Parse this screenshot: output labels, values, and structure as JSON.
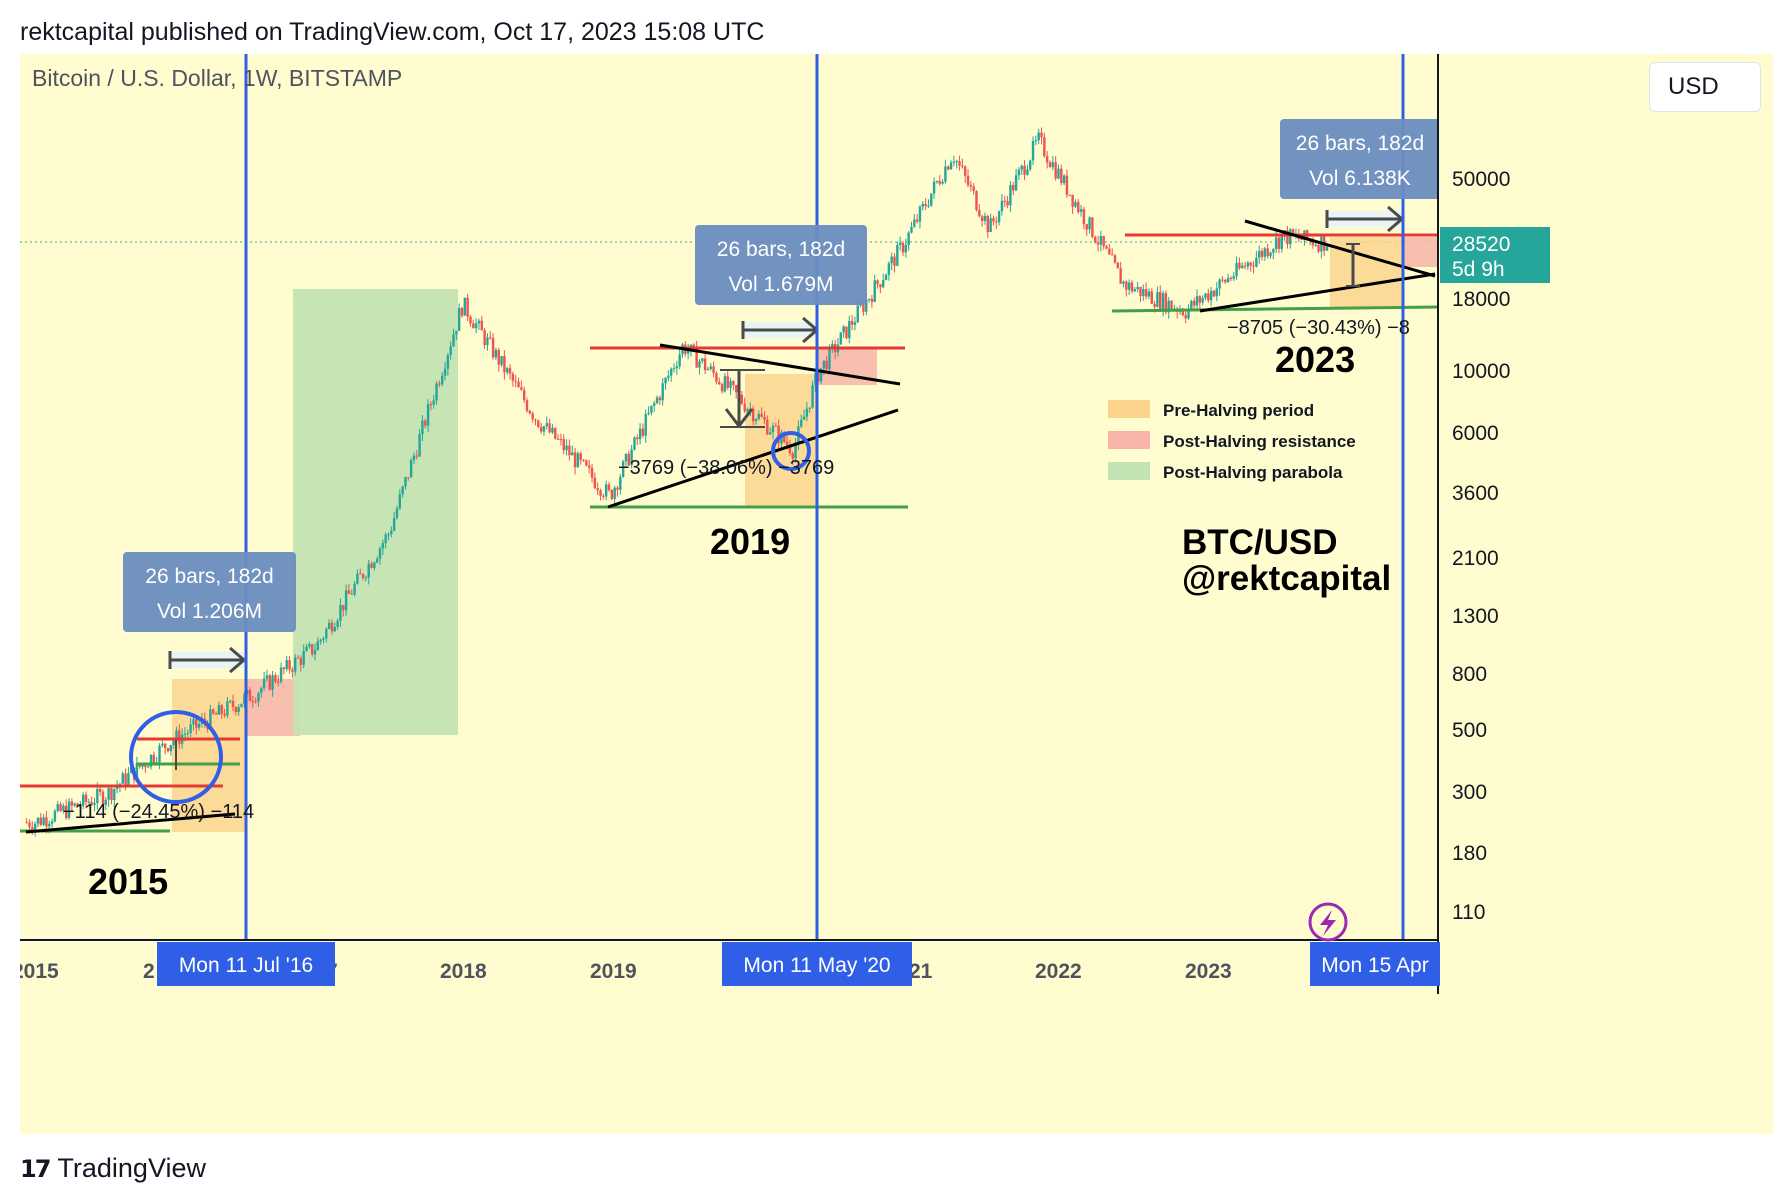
{
  "header": {
    "published_line": "rektcapital published on TradingView.com, Oct 17, 2023 15:08 UTC"
  },
  "chart_header": {
    "symbol_line": "Bitcoin / U.S. Dollar, 1W, BITSTAMP",
    "currency_button": "USD"
  },
  "footer": {
    "brand": "TradingView"
  },
  "colors": {
    "background": "#fffccf",
    "pre_halving": "#fbd38d",
    "post_halving_resistance": "#f8b4a8",
    "post_halving_parabola": "#c4e3b2",
    "resistance_line": "#e53935",
    "support_line": "#43a047",
    "halving_line": "#2f5fe6",
    "measure_box": "#6a8cbf",
    "price_tag": "#26a69a",
    "up_candle": "#26a69a",
    "down_candle": "#ef5350"
  },
  "chart_data": {
    "type": "candlestick",
    "title": "Bitcoin / U.S. Dollar, 1W, BITSTAMP",
    "scale": "log",
    "y_ticks": [
      "50000",
      "18000",
      "10000",
      "6000",
      "3600",
      "2100",
      "1300",
      "800",
      "500",
      "300",
      "180",
      "110"
    ],
    "x_ticks": [
      "2015",
      "2018",
      "2019",
      "2022",
      "2023"
    ],
    "x_tick_fragments": [
      "2",
      "7",
      "21"
    ],
    "last_price": "28520",
    "last_price_countdown": "5d 9h",
    "halving_markers": [
      "Mon 11 Jul '16",
      "Mon 11 May '20",
      "Mon 15 Apr"
    ],
    "series": [
      {
        "name": "BTC/USD",
        "approx_close": [
          {
            "t": "2015-01",
            "p": 220
          },
          {
            "t": "2015-07",
            "p": 280
          },
          {
            "t": "2015-12",
            "p": 430
          },
          {
            "t": "2016-07",
            "p": 650
          },
          {
            "t": "2016-12",
            "p": 960
          },
          {
            "t": "2017-06",
            "p": 2500
          },
          {
            "t": "2017-12",
            "p": 17000
          },
          {
            "t": "2018-06",
            "p": 6500
          },
          {
            "t": "2018-12",
            "p": 3400
          },
          {
            "t": "2019-06",
            "p": 12000
          },
          {
            "t": "2020-03",
            "p": 5000
          },
          {
            "t": "2020-05",
            "p": 9500
          },
          {
            "t": "2020-12",
            "p": 28000
          },
          {
            "t": "2021-04",
            "p": 60000
          },
          {
            "t": "2021-07",
            "p": 32000
          },
          {
            "t": "2021-11",
            "p": 67000
          },
          {
            "t": "2022-06",
            "p": 20000
          },
          {
            "t": "2022-11",
            "p": 16000
          },
          {
            "t": "2023-07",
            "p": 30000
          },
          {
            "t": "2023-10",
            "p": 28520
          }
        ]
      }
    ],
    "annotations": {
      "cycle_labels": [
        "2015",
        "2019",
        "2023"
      ],
      "measures": [
        {
          "text": "26 bars, 182d",
          "vol": "Vol 1.206M"
        },
        {
          "text": "26 bars, 182d",
          "vol": "Vol 1.679M"
        },
        {
          "text": "26 bars, 182d",
          "vol": "Vol 6.138K"
        }
      ],
      "drawdowns": [
        "−114 (−24.45%) −114",
        "−3769 (−38.06%) −3769",
        "−8705 (−30.43%) −8"
      ],
      "legend": [
        "Pre-Halving period",
        "Post-Halving resistance",
        "Post-Halving parabola"
      ],
      "watermark": [
        "BTC/USD",
        "@rektcapital"
      ]
    }
  }
}
